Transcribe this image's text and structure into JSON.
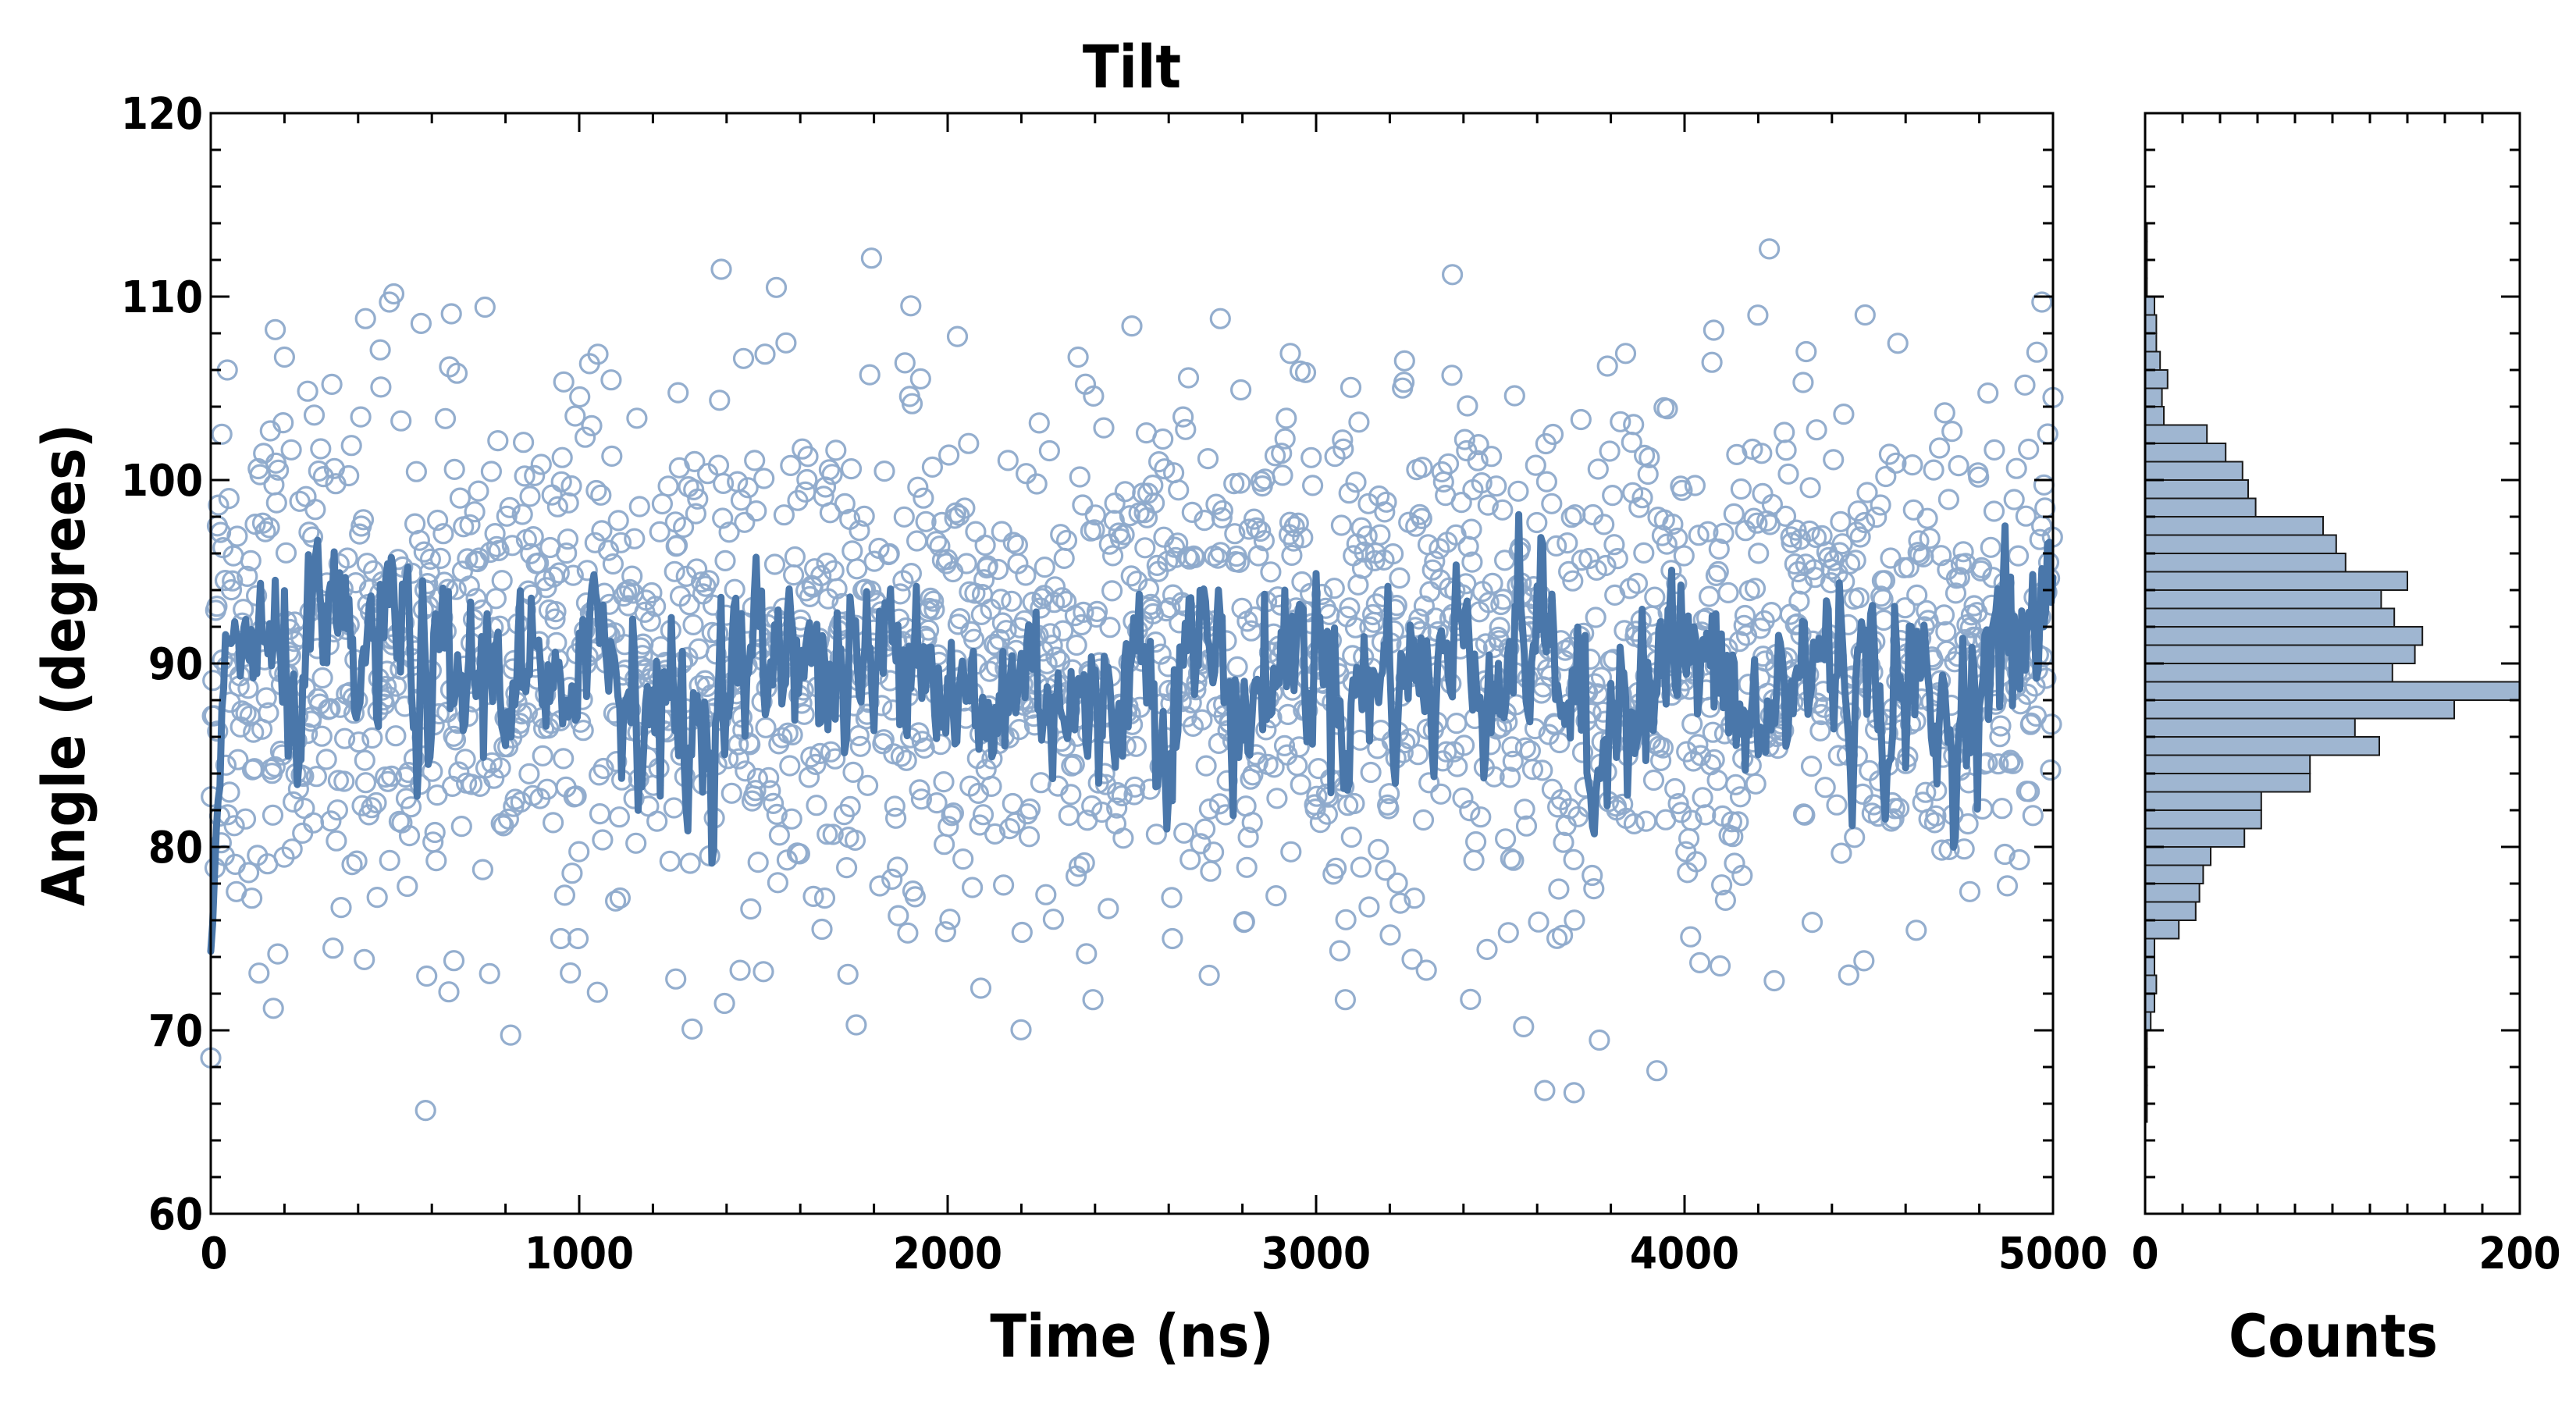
{
  "chart_data": [
    {
      "type": "scatter",
      "title": "Tilt",
      "xlabel": "Time (ns)",
      "ylabel": "Angle (degrees)",
      "xlim": [
        0,
        5000
      ],
      "ylim": [
        60,
        120
      ],
      "x_ticks": [
        0,
        1000,
        2000,
        3000,
        4000,
        5000
      ],
      "y_ticks": [
        60,
        70,
        80,
        90,
        100,
        110,
        120
      ],
      "grid": false,
      "series": [
        {
          "kind": "scatter",
          "marker": "open-circle",
          "color": "#8eaacb",
          "sample_points": [
            [
              0,
              68.5
            ],
            [
              18,
              97.5
            ],
            [
              30,
              102.5
            ],
            [
              45,
              106
            ],
            [
              60,
              91
            ],
            [
              170,
              71.2
            ],
            [
              175,
              108.2
            ],
            [
              200,
              106.7
            ],
            [
              420,
              108.8
            ],
            [
              460,
              107.1
            ],
            [
              485,
              109.7
            ],
            [
              660,
              73.8
            ],
            [
              820,
              89.7
            ],
            [
              950,
              75
            ],
            [
              1020,
              93.3
            ],
            [
              1150,
              96.8
            ],
            [
              1262,
              72.8
            ],
            [
              1400,
              88.5
            ],
            [
              1500,
              73.2
            ],
            [
              1535,
              110.5
            ],
            [
              1600,
              92
            ],
            [
              1752,
              70.3
            ],
            [
              1900,
              109.5
            ],
            [
              2090,
              72.3
            ],
            [
              2200,
              88
            ],
            [
              2350,
              91
            ],
            [
              2500,
              108.4
            ],
            [
              2610,
              75
            ],
            [
              2710,
              73
            ],
            [
              2740,
              108.8
            ],
            [
              2930,
              106.9
            ],
            [
              3100,
              89
            ],
            [
              3240,
              106.5
            ],
            [
              3370,
              111.2
            ],
            [
              3700,
              66.6
            ],
            [
              3840,
              106.9
            ],
            [
              3925,
              67.8
            ],
            [
              4230,
              112.6
            ],
            [
              4330,
              107
            ],
            [
              4490,
              109
            ],
            [
              4600,
              88
            ],
            [
              4840,
              98.3
            ],
            [
              4970,
              109.7
            ],
            [
              5000,
              104.5
            ]
          ],
          "mean": 90,
          "std": 7
        },
        {
          "kind": "line",
          "color": "#4a77aa",
          "description_values": {
            "x": [
              0,
              40,
              100,
              200,
              300,
              400,
              500,
              600,
              700,
              800,
              900,
              950,
              1000,
              1100,
              1200,
              1300,
              1400,
              1500,
              1600,
              1650,
              1700,
              1800,
              1900,
              2000,
              2100,
              2200,
              2300,
              2400,
              2500,
              2600,
              2700,
              2800,
              2900,
              3000,
              3100,
              3200,
              3300,
              3400,
              3500,
              3600,
              3700,
              3760,
              3800,
              3900,
              4000,
              4100,
              4200,
              4300,
              4400,
              4500,
              4600,
              4700,
              4800,
              4900,
              5000
            ],
            "y": [
              74,
              90,
              92,
              88,
              91,
              89,
              92,
              88,
              89,
              90,
              88,
              84,
              94,
              90,
              88,
              86,
              89,
              90,
              93,
              88,
              90,
              89,
              94,
              88,
              86,
              90,
              89,
              86,
              91,
              88,
              92,
              87,
              90,
              91,
              88,
              90,
              89,
              91,
              90,
              92,
              88,
              81,
              90,
              89,
              91,
              88,
              86,
              89,
              91,
              88,
              89,
              86,
              90,
              91,
              93
            ]
          }
        }
      ]
    },
    {
      "type": "bar",
      "orientation": "horizontal",
      "title": "",
      "xlabel": "Counts",
      "ylabel": "",
      "xlim": [
        0,
        200
      ],
      "ylim": [
        60,
        120
      ],
      "x_ticks": [
        0,
        200
      ],
      "color": "#9fb6d1",
      "edge_color": "#1a1a1a",
      "bin_width": 1,
      "bins": [
        [
          65,
          1
        ],
        [
          66,
          1
        ],
        [
          67,
          1
        ],
        [
          68,
          1
        ],
        [
          69,
          1
        ],
        [
          70,
          3
        ],
        [
          71,
          5
        ],
        [
          72,
          6
        ],
        [
          73,
          5
        ],
        [
          74,
          5
        ],
        [
          75,
          18
        ],
        [
          76,
          27
        ],
        [
          77,
          29
        ],
        [
          78,
          31
        ],
        [
          79,
          35
        ],
        [
          80,
          53
        ],
        [
          81,
          62
        ],
        [
          82,
          62
        ],
        [
          83,
          88
        ],
        [
          84,
          88
        ],
        [
          85,
          125
        ],
        [
          86,
          112
        ],
        [
          87,
          165
        ],
        [
          88,
          200
        ],
        [
          89,
          132
        ],
        [
          90,
          144
        ],
        [
          91,
          148
        ],
        [
          92,
          133
        ],
        [
          93,
          126
        ],
        [
          94,
          140
        ],
        [
          95,
          107
        ],
        [
          96,
          102
        ],
        [
          97,
          95
        ],
        [
          98,
          59
        ],
        [
          99,
          55
        ],
        [
          100,
          52
        ],
        [
          101,
          43
        ],
        [
          102,
          33
        ],
        [
          103,
          10
        ],
        [
          104,
          9
        ],
        [
          105,
          12
        ],
        [
          106,
          8
        ],
        [
          107,
          6
        ],
        [
          108,
          6
        ],
        [
          109,
          5
        ],
        [
          110,
          1
        ],
        [
          111,
          1
        ],
        [
          112,
          1
        ],
        [
          113,
          1
        ]
      ]
    }
  ]
}
